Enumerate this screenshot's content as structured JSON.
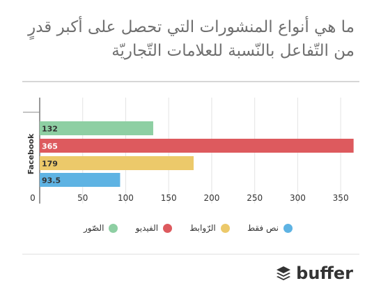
{
  "title": {
    "line1": "ما هي أنواع المنشورات التي تحصل على أكبر قدرٍ",
    "line2": "من التّفاعل بالنّسبة للعلامات التّجاريّة"
  },
  "brand": {
    "name": "buffer",
    "icon": "buffer-stack-icon"
  },
  "chart_data": {
    "type": "bar",
    "orientation": "horizontal",
    "categories": [
      "Facebook"
    ],
    "series": [
      {
        "name": "الصّور",
        "values": [
          132
        ],
        "color": "#8ecfa3"
      },
      {
        "name": "الفيديو",
        "values": [
          365
        ],
        "color": "#dd5a5e"
      },
      {
        "name": "الرّوابط",
        "values": [
          179
        ],
        "color": "#ecc96a"
      },
      {
        "name": "نص فقط",
        "values": [
          93.5
        ],
        "color": "#5eb3e3"
      }
    ],
    "data_labels": [
      "132",
      "365",
      "179",
      "93.5"
    ],
    "xlim": [
      0,
      375
    ],
    "xticks": [
      0,
      50,
      100,
      150,
      200,
      250,
      300,
      350
    ],
    "xtick_labels": [
      "0",
      "50",
      "100",
      "150",
      "200",
      "250",
      "300",
      "350"
    ],
    "grid": true,
    "legend_position": "bottom",
    "title": "",
    "xlabel": "",
    "ylabel": ""
  }
}
